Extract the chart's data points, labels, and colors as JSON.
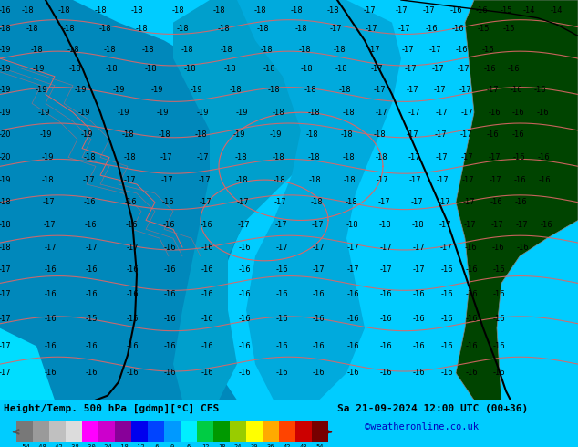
{
  "title_left": "Height/Temp. 500 hPa [gdmp][°C] CFS",
  "title_right": "Sa 21-09-2024 12:00 UTC (00+36)",
  "credit": "©weatheronline.co.uk",
  "colorbar_values": [
    -54,
    -48,
    -42,
    -38,
    -30,
    -24,
    -18,
    -12,
    -6,
    0,
    6,
    12,
    18,
    24,
    30,
    36,
    42,
    48,
    54
  ],
  "colorbar_colors": [
    "#787878",
    "#9a9a9a",
    "#c0c0c0",
    "#dcdcdc",
    "#ff00ff",
    "#cc00cc",
    "#880099",
    "#0000ee",
    "#0044ff",
    "#0099ff",
    "#00eeff",
    "#00cc44",
    "#009900",
    "#99cc00",
    "#ffff00",
    "#ffaa00",
    "#ff4400",
    "#cc0000",
    "#770000"
  ],
  "ocean_light": "#00eeff",
  "ocean_dark": "#0088cc",
  "trough_color": "#0099dd",
  "land_green": "#004400",
  "contour_black": "#000000",
  "contour_pink": "#dd6666",
  "label_color": "#000000",
  "bg_color": "#00ccff",
  "title_color": "#000000",
  "credit_color": "#0000bb",
  "figsize": [
    6.34,
    4.9
  ],
  "dpi": 100
}
